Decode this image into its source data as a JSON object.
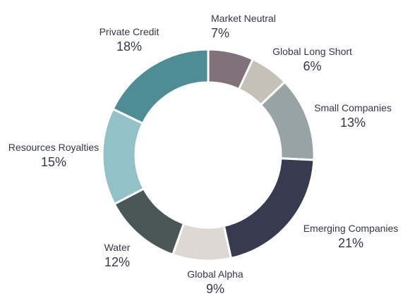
{
  "chart_data": {
    "type": "pie",
    "variant": "donut",
    "title": "",
    "legend": "none",
    "slices": [
      {
        "label": "Market Neutral",
        "value": 7,
        "value_text": "7%",
        "color": "#81717a"
      },
      {
        "label": "Global Long Short",
        "value": 6,
        "value_text": "6%",
        "color": "#c6c0b8"
      },
      {
        "label": "Small Companies",
        "value": 13,
        "value_text": "13%",
        "color": "#98a3a8"
      },
      {
        "label": "Emerging Companies",
        "value": 21,
        "value_text": "21%",
        "color": "#363b4f"
      },
      {
        "label": "Global Alpha",
        "value": 9,
        "value_text": "9%",
        "color": "#ddd9d2"
      },
      {
        "label": "Water",
        "value": 12,
        "value_text": "12%",
        "color": "#4b5657"
      },
      {
        "label": "Resources Royalties",
        "value": 15,
        "value_text": "15%",
        "color": "#92c2c8"
      },
      {
        "label": "Private Credit",
        "value": 18,
        "value_text": "18%",
        "color": "#4f8d94"
      }
    ]
  }
}
